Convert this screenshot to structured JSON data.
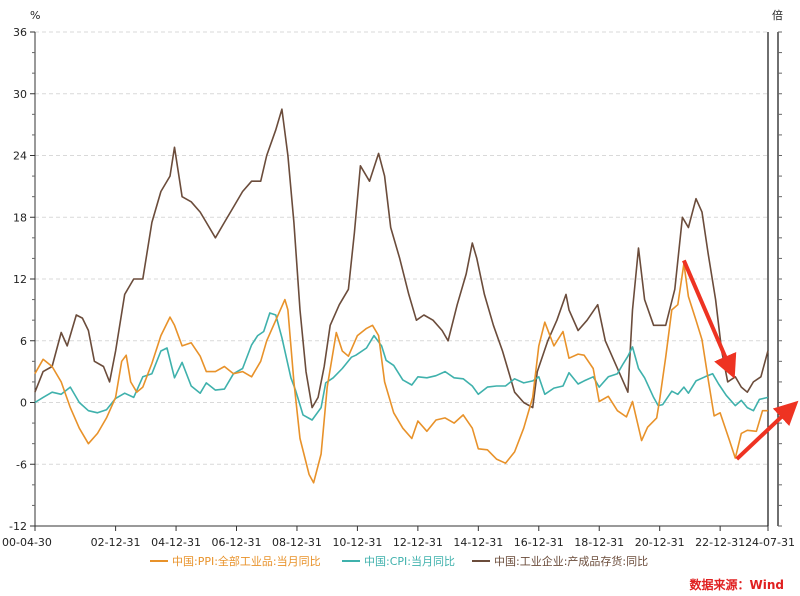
{
  "chart_data": {
    "type": "line",
    "left_unit": "%",
    "right_unit": "倍",
    "ylim": [
      -12,
      36
    ],
    "yticks": [
      -12,
      -6,
      0,
      6,
      12,
      18,
      24,
      30,
      36
    ],
    "ytick_labels": [
      "-12",
      "-6",
      "0",
      "6",
      "12",
      "18",
      "24",
      "30",
      "36"
    ],
    "xlim": [
      "2000-04-30",
      "2024-07-31"
    ],
    "xticks": [
      "2000-04-30",
      "2002-12-31",
      "2004-12-31",
      "2006-12-31",
      "2008-12-31",
      "2010-12-31",
      "2012-12-31",
      "2014-12-31",
      "2016-12-31",
      "2018-12-31",
      "2020-12-31",
      "2022-12-31",
      "2024-07-31"
    ],
    "xtick_labels": [
      "00-04-30",
      "02-12-31",
      "04-12-31",
      "06-12-31",
      "08-12-31",
      "10-12-31",
      "12-12-31",
      "14-12-31",
      "16-12-31",
      "18-12-31",
      "20-12-31",
      "22-12-31",
      "24-07-31"
    ],
    "grid": "horizontal-dashed",
    "legend_position": "bottom",
    "series": [
      {
        "name": "中国:PPI:全部工业品:当月同比",
        "color": "#e8922a",
        "points": [
          [
            2000.33,
            2.8
          ],
          [
            2000.6,
            4.2
          ],
          [
            2000.9,
            3.5
          ],
          [
            2001.2,
            2.0
          ],
          [
            2001.5,
            -0.5
          ],
          [
            2001.8,
            -2.5
          ],
          [
            2002.1,
            -4.0
          ],
          [
            2002.4,
            -3.0
          ],
          [
            2002.7,
            -1.5
          ],
          [
            2003.0,
            0.5
          ],
          [
            2003.2,
            4.0
          ],
          [
            2003.35,
            4.6
          ],
          [
            2003.5,
            2.0
          ],
          [
            2003.7,
            1.0
          ],
          [
            2003.9,
            1.5
          ],
          [
            2004.2,
            3.8
          ],
          [
            2004.5,
            6.5
          ],
          [
            2004.8,
            8.3
          ],
          [
            2004.95,
            7.5
          ],
          [
            2005.2,
            5.5
          ],
          [
            2005.5,
            5.8
          ],
          [
            2005.8,
            4.5
          ],
          [
            2006.0,
            3.0
          ],
          [
            2006.3,
            3.0
          ],
          [
            2006.6,
            3.5
          ],
          [
            2006.9,
            2.8
          ],
          [
            2007.2,
            3.0
          ],
          [
            2007.5,
            2.5
          ],
          [
            2007.8,
            4.0
          ],
          [
            2008.0,
            6.0
          ],
          [
            2008.3,
            8.0
          ],
          [
            2008.6,
            10.0
          ],
          [
            2008.7,
            9.0
          ],
          [
            2008.9,
            2.0
          ],
          [
            2009.1,
            -3.5
          ],
          [
            2009.4,
            -7.0
          ],
          [
            2009.55,
            -7.8
          ],
          [
            2009.8,
            -5.0
          ],
          [
            2010.0,
            1.5
          ],
          [
            2010.3,
            6.8
          ],
          [
            2010.5,
            5.0
          ],
          [
            2010.7,
            4.5
          ],
          [
            2011.0,
            6.5
          ],
          [
            2011.3,
            7.2
          ],
          [
            2011.5,
            7.5
          ],
          [
            2011.7,
            6.5
          ],
          [
            2011.9,
            2.0
          ],
          [
            2012.2,
            -1.0
          ],
          [
            2012.5,
            -2.5
          ],
          [
            2012.8,
            -3.5
          ],
          [
            2013.0,
            -1.8
          ],
          [
            2013.3,
            -2.8
          ],
          [
            2013.6,
            -1.7
          ],
          [
            2013.9,
            -1.5
          ],
          [
            2014.2,
            -2.0
          ],
          [
            2014.5,
            -1.2
          ],
          [
            2014.8,
            -2.5
          ],
          [
            2015.0,
            -4.5
          ],
          [
            2015.3,
            -4.6
          ],
          [
            2015.6,
            -5.5
          ],
          [
            2015.9,
            -5.9
          ],
          [
            2016.2,
            -4.8
          ],
          [
            2016.5,
            -2.5
          ],
          [
            2016.8,
            0.5
          ],
          [
            2017.0,
            5.5
          ],
          [
            2017.2,
            7.8
          ],
          [
            2017.5,
            5.5
          ],
          [
            2017.8,
            6.9
          ],
          [
            2018.0,
            4.3
          ],
          [
            2018.3,
            4.7
          ],
          [
            2018.5,
            4.6
          ],
          [
            2018.8,
            3.3
          ],
          [
            2019.0,
            0.1
          ],
          [
            2019.3,
            0.6
          ],
          [
            2019.6,
            -0.8
          ],
          [
            2019.9,
            -1.4
          ],
          [
            2020.1,
            0.1
          ],
          [
            2020.4,
            -3.7
          ],
          [
            2020.6,
            -2.4
          ],
          [
            2020.9,
            -1.5
          ],
          [
            2021.0,
            0.3
          ],
          [
            2021.2,
            4.4
          ],
          [
            2021.4,
            9.0
          ],
          [
            2021.6,
            9.5
          ],
          [
            2021.8,
            13.5
          ],
          [
            2021.95,
            10.3
          ],
          [
            2022.2,
            8.0
          ],
          [
            2022.4,
            6.1
          ],
          [
            2022.6,
            2.3
          ],
          [
            2022.8,
            -1.3
          ],
          [
            2023.0,
            -1.0
          ],
          [
            2023.3,
            -3.6
          ],
          [
            2023.5,
            -5.4
          ],
          [
            2023.7,
            -3.0
          ],
          [
            2023.9,
            -2.7
          ],
          [
            2024.2,
            -2.8
          ],
          [
            2024.4,
            -0.8
          ],
          [
            2024.58,
            -0.8
          ]
        ]
      },
      {
        "name": "中国:CPI:当月同比",
        "color": "#3fb1ac",
        "points": [
          [
            2000.33,
            0.0
          ],
          [
            2000.6,
            0.5
          ],
          [
            2000.9,
            1.0
          ],
          [
            2001.2,
            0.8
          ],
          [
            2001.5,
            1.5
          ],
          [
            2001.8,
            0.0
          ],
          [
            2002.1,
            -0.8
          ],
          [
            2002.4,
            -1.0
          ],
          [
            2002.7,
            -0.7
          ],
          [
            2003.0,
            0.4
          ],
          [
            2003.3,
            0.9
          ],
          [
            2003.6,
            0.5
          ],
          [
            2003.9,
            2.5
          ],
          [
            2004.2,
            2.8
          ],
          [
            2004.5,
            5.0
          ],
          [
            2004.7,
            5.3
          ],
          [
            2004.95,
            2.4
          ],
          [
            2005.2,
            3.9
          ],
          [
            2005.5,
            1.6
          ],
          [
            2005.8,
            0.9
          ],
          [
            2006.0,
            1.9
          ],
          [
            2006.3,
            1.2
          ],
          [
            2006.6,
            1.3
          ],
          [
            2006.9,
            2.8
          ],
          [
            2007.2,
            3.3
          ],
          [
            2007.5,
            5.6
          ],
          [
            2007.7,
            6.5
          ],
          [
            2007.9,
            6.9
          ],
          [
            2008.1,
            8.7
          ],
          [
            2008.3,
            8.5
          ],
          [
            2008.5,
            6.3
          ],
          [
            2008.8,
            2.4
          ],
          [
            2008.95,
            1.2
          ],
          [
            2009.2,
            -1.2
          ],
          [
            2009.5,
            -1.7
          ],
          [
            2009.8,
            -0.5
          ],
          [
            2009.95,
            1.9
          ],
          [
            2010.2,
            2.4
          ],
          [
            2010.5,
            3.3
          ],
          [
            2010.8,
            4.4
          ],
          [
            2010.95,
            4.6
          ],
          [
            2011.3,
            5.3
          ],
          [
            2011.55,
            6.5
          ],
          [
            2011.8,
            5.5
          ],
          [
            2011.95,
            4.1
          ],
          [
            2012.2,
            3.6
          ],
          [
            2012.5,
            2.2
          ],
          [
            2012.8,
            1.7
          ],
          [
            2013.0,
            2.5
          ],
          [
            2013.3,
            2.4
          ],
          [
            2013.6,
            2.6
          ],
          [
            2013.9,
            3.0
          ],
          [
            2014.2,
            2.4
          ],
          [
            2014.5,
            2.3
          ],
          [
            2014.8,
            1.6
          ],
          [
            2015.0,
            0.8
          ],
          [
            2015.3,
            1.5
          ],
          [
            2015.6,
            1.6
          ],
          [
            2015.9,
            1.6
          ],
          [
            2016.2,
            2.3
          ],
          [
            2016.5,
            1.9
          ],
          [
            2016.8,
            2.1
          ],
          [
            2017.0,
            2.5
          ],
          [
            2017.2,
            0.8
          ],
          [
            2017.5,
            1.4
          ],
          [
            2017.8,
            1.6
          ],
          [
            2018.0,
            2.9
          ],
          [
            2018.3,
            1.8
          ],
          [
            2018.5,
            2.1
          ],
          [
            2018.8,
            2.5
          ],
          [
            2019.0,
            1.5
          ],
          [
            2019.3,
            2.5
          ],
          [
            2019.6,
            2.8
          ],
          [
            2019.8,
            3.8
          ],
          [
            2019.95,
            4.5
          ],
          [
            2020.1,
            5.4
          ],
          [
            2020.3,
            3.3
          ],
          [
            2020.5,
            2.4
          ],
          [
            2020.8,
            0.5
          ],
          [
            2020.95,
            -0.3
          ],
          [
            2021.1,
            -0.2
          ],
          [
            2021.4,
            1.1
          ],
          [
            2021.6,
            0.8
          ],
          [
            2021.8,
            1.5
          ],
          [
            2021.95,
            0.9
          ],
          [
            2022.2,
            2.1
          ],
          [
            2022.5,
            2.5
          ],
          [
            2022.75,
            2.8
          ],
          [
            2022.95,
            1.8
          ],
          [
            2023.2,
            0.7
          ],
          [
            2023.5,
            -0.3
          ],
          [
            2023.7,
            0.2
          ],
          [
            2023.9,
            -0.5
          ],
          [
            2024.1,
            -0.8
          ],
          [
            2024.3,
            0.3
          ],
          [
            2024.58,
            0.5
          ]
        ]
      },
      {
        "name": "中国:工业企业:产成品存货:同比",
        "color": "#6b4c3b",
        "points": [
          [
            2000.33,
            1.0
          ],
          [
            2000.6,
            3.0
          ],
          [
            2000.9,
            3.5
          ],
          [
            2001.2,
            6.8
          ],
          [
            2001.4,
            5.5
          ],
          [
            2001.7,
            8.5
          ],
          [
            2001.9,
            8.2
          ],
          [
            2002.1,
            7.0
          ],
          [
            2002.3,
            4.0
          ],
          [
            2002.6,
            3.5
          ],
          [
            2002.8,
            2.0
          ],
          [
            2003.0,
            5.0
          ],
          [
            2003.3,
            10.5
          ],
          [
            2003.6,
            12.0
          ],
          [
            2003.9,
            12.0
          ],
          [
            2004.2,
            17.5
          ],
          [
            2004.5,
            20.5
          ],
          [
            2004.8,
            22.0
          ],
          [
            2004.95,
            24.8
          ],
          [
            2005.2,
            20.0
          ],
          [
            2005.5,
            19.5
          ],
          [
            2005.8,
            18.5
          ],
          [
            2006.0,
            17.5
          ],
          [
            2006.3,
            16.0
          ],
          [
            2006.6,
            17.5
          ],
          [
            2006.9,
            19.0
          ],
          [
            2007.2,
            20.5
          ],
          [
            2007.5,
            21.5
          ],
          [
            2007.8,
            21.5
          ],
          [
            2008.0,
            24.0
          ],
          [
            2008.3,
            26.5
          ],
          [
            2008.5,
            28.5
          ],
          [
            2008.7,
            24.0
          ],
          [
            2008.9,
            17.5
          ],
          [
            2009.1,
            9.0
          ],
          [
            2009.3,
            3.0
          ],
          [
            2009.5,
            -0.5
          ],
          [
            2009.7,
            0.5
          ],
          [
            2009.9,
            3.5
          ],
          [
            2010.1,
            7.5
          ],
          [
            2010.4,
            9.5
          ],
          [
            2010.7,
            11.0
          ],
          [
            2010.9,
            16.5
          ],
          [
            2011.1,
            23.0
          ],
          [
            2011.4,
            21.5
          ],
          [
            2011.7,
            24.2
          ],
          [
            2011.9,
            22.0
          ],
          [
            2012.1,
            17.0
          ],
          [
            2012.4,
            14.0
          ],
          [
            2012.7,
            10.5
          ],
          [
            2012.95,
            8.0
          ],
          [
            2013.2,
            8.5
          ],
          [
            2013.5,
            8.0
          ],
          [
            2013.8,
            7.0
          ],
          [
            2014.0,
            6.0
          ],
          [
            2014.3,
            9.5
          ],
          [
            2014.6,
            12.5
          ],
          [
            2014.8,
            15.5
          ],
          [
            2014.95,
            14.0
          ],
          [
            2015.2,
            10.5
          ],
          [
            2015.5,
            7.5
          ],
          [
            2015.8,
            5.0
          ],
          [
            2016.0,
            3.0
          ],
          [
            2016.2,
            1.0
          ],
          [
            2016.5,
            0.0
          ],
          [
            2016.8,
            -0.5
          ],
          [
            2016.95,
            3.0
          ],
          [
            2017.3,
            6.0
          ],
          [
            2017.6,
            8.0
          ],
          [
            2017.9,
            10.5
          ],
          [
            2018.0,
            9.0
          ],
          [
            2018.3,
            7.0
          ],
          [
            2018.6,
            8.0
          ],
          [
            2018.95,
            9.5
          ],
          [
            2019.2,
            6.0
          ],
          [
            2019.5,
            4.0
          ],
          [
            2019.8,
            2.0
          ],
          [
            2019.95,
            1.0
          ],
          [
            2020.1,
            9.0
          ],
          [
            2020.3,
            15.0
          ],
          [
            2020.5,
            10.0
          ],
          [
            2020.8,
            7.5
          ],
          [
            2020.95,
            7.5
          ],
          [
            2021.2,
            7.5
          ],
          [
            2021.5,
            11.0
          ],
          [
            2021.75,
            18.0
          ],
          [
            2021.95,
            17.0
          ],
          [
            2022.2,
            19.8
          ],
          [
            2022.4,
            18.5
          ],
          [
            2022.6,
            14.5
          ],
          [
            2022.85,
            10.0
          ],
          [
            2023.05,
            5.0
          ],
          [
            2023.25,
            2.0
          ],
          [
            2023.5,
            2.5
          ],
          [
            2023.7,
            1.5
          ],
          [
            2023.9,
            1.0
          ],
          [
            2024.1,
            2.0
          ],
          [
            2024.35,
            2.5
          ],
          [
            2024.58,
            5.0
          ]
        ]
      }
    ],
    "annotations": [
      {
        "type": "arrow",
        "color": "#ee3322",
        "direction": "down",
        "from": [
          2021.8,
          13.8
        ],
        "to": [
          2023.35,
          3.2
        ]
      },
      {
        "type": "arrow",
        "color": "#ee3322",
        "direction": "up",
        "from": [
          2023.55,
          -5.5
        ],
        "to": [
          2025.35,
          -0.5
        ]
      }
    ],
    "source": "数据来源：Wind"
  }
}
